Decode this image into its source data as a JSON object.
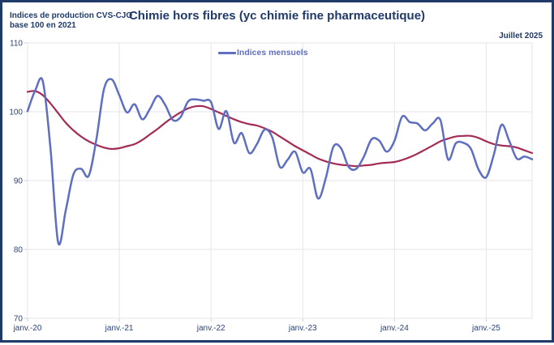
{
  "frame": {
    "title": "Chimie hors fibres (yc chimie fine pharmaceutique)",
    "unit_label_line1": "Indices de production CVS-CJO",
    "unit_label_line2": "base 100 en 2021",
    "period_label": "Juillet 2025"
  },
  "legend": {
    "items": [
      {
        "label": "Indices mensuels",
        "color": "#5E6EC1"
      }
    ]
  },
  "colors": {
    "navy": "#1F3A68",
    "monthly_line": "#5E6EC1",
    "trend_line": "#A22C56",
    "grid": "#E4E6EE",
    "tick": "#C9CDDB",
    "background": "#FFFFFF"
  },
  "chart_data": {
    "type": "line",
    "title": "Chimie hors fibres (yc chimie fine pharmaceutique)",
    "subtitle_left": "Indices de production CVS-CJO base 100 en 2021",
    "latest_period": "Juillet 2025",
    "grid": true,
    "legend_position": "top-center",
    "ylim": [
      70,
      110
    ],
    "yticks": [
      70,
      80,
      90,
      100,
      110
    ],
    "xtick_labels": [
      "janv.-20",
      "janv.-21",
      "janv.-22",
      "janv.-23",
      "janv.-24",
      "janv.-25"
    ],
    "xtick_month_index": [
      0,
      12,
      24,
      36,
      48,
      60
    ],
    "months": [
      "2020-01",
      "2020-02",
      "2020-03",
      "2020-04",
      "2020-05",
      "2020-06",
      "2020-07",
      "2020-08",
      "2020-09",
      "2020-10",
      "2020-11",
      "2020-12",
      "2021-01",
      "2021-02",
      "2021-03",
      "2021-04",
      "2021-05",
      "2021-06",
      "2021-07",
      "2021-08",
      "2021-09",
      "2021-10",
      "2021-11",
      "2021-12",
      "2022-01",
      "2022-02",
      "2022-03",
      "2022-04",
      "2022-05",
      "2022-06",
      "2022-07",
      "2022-08",
      "2022-09",
      "2022-10",
      "2022-11",
      "2022-12",
      "2023-01",
      "2023-02",
      "2023-03",
      "2023-04",
      "2023-05",
      "2023-06",
      "2023-07",
      "2023-08",
      "2023-09",
      "2023-10",
      "2023-11",
      "2023-12",
      "2024-01",
      "2024-02",
      "2024-03",
      "2024-04",
      "2024-05",
      "2024-06",
      "2024-07",
      "2024-08",
      "2024-09",
      "2024-10",
      "2024-11",
      "2024-12",
      "2025-01",
      "2025-02",
      "2025-03",
      "2025-04",
      "2025-05",
      "2025-06",
      "2025-07"
    ],
    "series": [
      {
        "name": "Indices mensuels",
        "color": "#5E6EC1",
        "width": 2.5,
        "values": [
          100.1,
          103.1,
          104.4,
          94.6,
          81.0,
          85.7,
          90.9,
          91.7,
          90.7,
          96.0,
          103.3,
          104.7,
          102.4,
          99.9,
          101.1,
          98.9,
          100.4,
          102.3,
          101.0,
          98.8,
          99.2,
          101.5,
          101.8,
          101.6,
          101.4,
          97.5,
          100.1,
          95.5,
          96.9,
          94.0,
          95.3,
          97.4,
          96.3,
          92.0,
          93.0,
          94.2,
          91.2,
          91.7,
          87.4,
          90.3,
          94.9,
          94.7,
          92.0,
          91.7,
          93.5,
          96.0,
          95.8,
          94.2,
          95.8,
          99.3,
          98.5,
          98.3,
          97.3,
          98.3,
          98.8,
          93.1,
          95.4,
          95.5,
          94.6,
          91.6,
          90.5,
          93.8,
          98.1,
          95.8,
          93.2,
          93.5,
          93.1
        ]
      },
      {
        "name": "unlabeled-trend-line",
        "color": "#A22C56",
        "width": 2.2,
        "values": [
          102.9,
          103.0,
          102.4,
          101.2,
          99.8,
          98.4,
          97.3,
          96.4,
          95.7,
          95.2,
          94.8,
          94.6,
          94.7,
          95.0,
          95.3,
          95.9,
          96.7,
          97.5,
          98.4,
          99.2,
          99.9,
          100.5,
          100.8,
          100.8,
          100.4,
          99.9,
          99.4,
          98.9,
          98.5,
          98.2,
          98.0,
          97.6,
          97.1,
          96.4,
          95.7,
          95.0,
          94.4,
          93.8,
          93.2,
          92.8,
          92.5,
          92.3,
          92.2,
          92.1,
          92.2,
          92.3,
          92.5,
          92.6,
          92.7,
          93.0,
          93.4,
          93.9,
          94.5,
          95.1,
          95.7,
          96.1,
          96.4,
          96.5,
          96.5,
          96.2,
          95.7,
          95.3,
          95.1,
          95.0,
          94.8,
          94.4,
          94.0
        ]
      }
    ]
  }
}
